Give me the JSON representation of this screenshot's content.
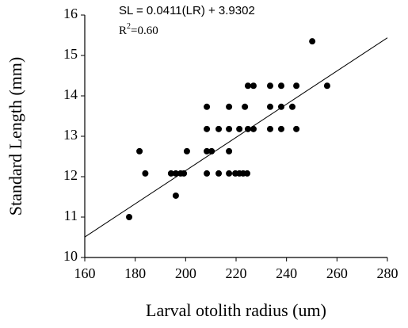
{
  "chart_data": {
    "type": "scatter",
    "x_label": "Larval otolith radius (um)",
    "y_label": "Standard Length (mm)",
    "annotations": {
      "equation": "SL = 0.0411(LR) + 3.9302",
      "r2": {
        "base": "R",
        "sup": "2",
        "tail": "=0.60"
      }
    },
    "trendline": {
      "slope": 0.0411,
      "intercept": 3.9302,
      "color": "#000000"
    },
    "color": "#000000",
    "x": [
      177.6,
      181.7,
      184,
      194.2,
      196.1,
      198,
      199.3,
      196.1,
      200.5,
      208.4,
      208.4,
      208.4,
      208.4,
      210.3,
      213.1,
      213.1,
      217.2,
      217.2,
      217.2,
      217.2,
      219.7,
      221.3,
      222.8,
      224.4,
      221.3,
      223.5,
      224.7,
      226.9,
      224.7,
      226.9,
      233.5,
      233.5,
      233.5,
      237.9,
      237.9,
      237.9,
      242.3,
      243.9,
      243.9,
      250.2,
      256.1
    ],
    "values": [
      11.0,
      12.63,
      12.08,
      12.08,
      12.08,
      12.08,
      12.08,
      11.53,
      12.63,
      13.73,
      13.18,
      12.63,
      12.08,
      12.63,
      13.18,
      12.08,
      13.73,
      13.18,
      12.63,
      12.08,
      12.08,
      12.08,
      12.08,
      12.08,
      13.18,
      13.73,
      14.25,
      14.25,
      13.18,
      13.18,
      14.25,
      13.73,
      13.18,
      14.25,
      13.73,
      13.18,
      13.73,
      14.25,
      13.18,
      15.35,
      14.25
    ],
    "xlim": [
      160,
      280
    ],
    "ylim": [
      10,
      16
    ],
    "xticks": [
      160,
      180,
      200,
      220,
      240,
      260,
      280
    ],
    "yticks": [
      10,
      11,
      12,
      13,
      14,
      15,
      16
    ]
  }
}
